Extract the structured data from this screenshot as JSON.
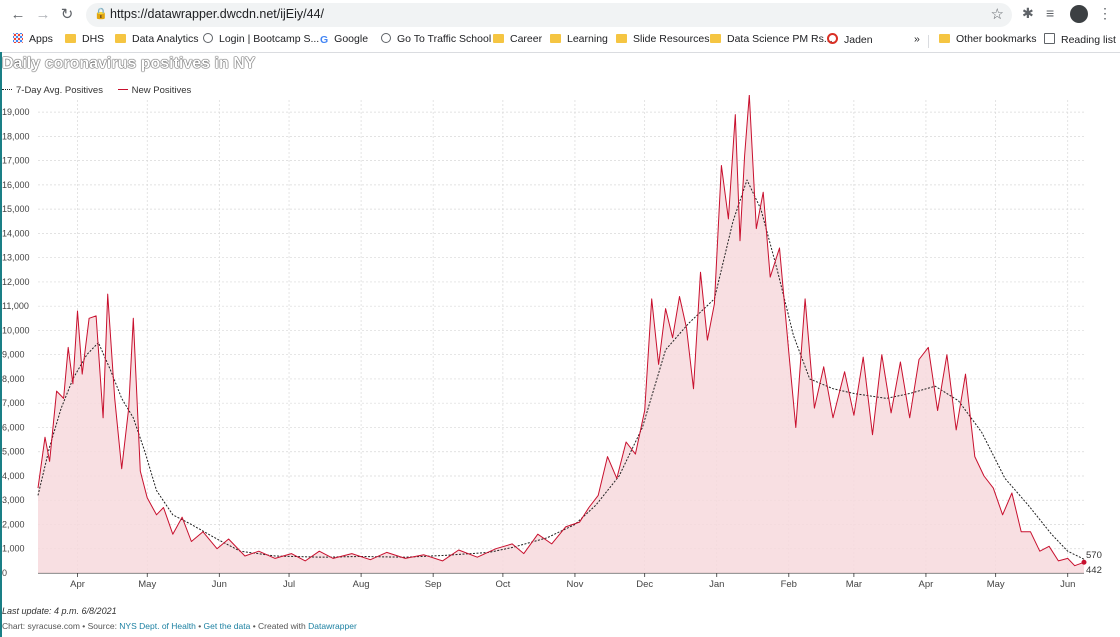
{
  "browser": {
    "url": "https://datawrapper.dwcdn.net/ijEiy/44/",
    "bookmarks": [
      "Apps",
      "DHS",
      "Data Analytics",
      "Login | Bootcamp S...",
      "Google",
      "Go To Traffic School",
      "Career",
      "Learning",
      "Slide Resources",
      "Data Science PM Rs...",
      "Jaden"
    ],
    "more_label": "»",
    "other_bookmarks": "Other bookmarks",
    "reading_list": "Reading list"
  },
  "footer": {
    "last_update": "Last update: 4 p.m. 6/8/2021",
    "prefix": "Chart: syracuse.com • Source: ",
    "source_link": "NYS Dept. of Health",
    "sep1": " • ",
    "data_link": "Get the data",
    "sep2": " • Created with ",
    "dw_link": "Datawrapper"
  },
  "colors": {
    "new_line": "#c8102e",
    "area_fill": "#f7d9dd",
    "avg_line": "#222222",
    "grid": "#d8d8d8"
  },
  "chart_data": {
    "type": "line",
    "title": "Daily coronavirus positives in NY",
    "x_axis": "date",
    "x_range": [
      "2020-03-15",
      "2021-06-08"
    ],
    "ylim": [
      0,
      19500
    ],
    "y_ticks": [
      0,
      1000,
      2000,
      3000,
      4000,
      5000,
      6000,
      7000,
      8000,
      9000,
      10000,
      11000,
      12000,
      13000,
      14000,
      15000,
      16000,
      17000,
      18000,
      19000
    ],
    "y_tick_labels": [
      "0",
      "1,000",
      "2,000",
      "3,000",
      "4,000",
      "5,000",
      "6,000",
      "7,000",
      "8,000",
      "9,000",
      "10,000",
      "11,000",
      "12,000",
      "13,000",
      "14,000",
      "15,000",
      "16,000",
      "17,000",
      "18,000",
      "19,000"
    ],
    "x_ticks": [
      "2020-04-01",
      "2020-05-01",
      "2020-06-01",
      "2020-07-01",
      "2020-08-01",
      "2020-09-01",
      "2020-10-01",
      "2020-11-01",
      "2020-12-01",
      "2021-01-01",
      "2021-02-01",
      "2021-03-01",
      "2021-04-01",
      "2021-05-01",
      "2021-06-01"
    ],
    "x_tick_labels": [
      "Apr",
      "May",
      "Jun",
      "Jul",
      "Aug",
      "Sep",
      "Oct",
      "Nov",
      "Dec",
      "Jan",
      "Feb",
      "Mar",
      "Apr",
      "May",
      "Jun"
    ],
    "grid": true,
    "legend_position": "top-left",
    "series": [
      {
        "name": "7-Day Avg. Positives",
        "style": "dotted",
        "end_label": "570",
        "points": [
          [
            "2020-03-15",
            3200
          ],
          [
            "2020-03-20",
            5200
          ],
          [
            "2020-03-25",
            6800
          ],
          [
            "2020-03-30",
            8000
          ],
          [
            "2020-04-05",
            9000
          ],
          [
            "2020-04-10",
            9500
          ],
          [
            "2020-04-15",
            8400
          ],
          [
            "2020-04-20",
            7200
          ],
          [
            "2020-04-25",
            6400
          ],
          [
            "2020-04-30",
            5000
          ],
          [
            "2020-05-05",
            3400
          ],
          [
            "2020-05-12",
            2400
          ],
          [
            "2020-05-20",
            2000
          ],
          [
            "2020-05-31",
            1400
          ],
          [
            "2020-06-10",
            900
          ],
          [
            "2020-06-25",
            700
          ],
          [
            "2020-07-15",
            650
          ],
          [
            "2020-08-01",
            680
          ],
          [
            "2020-08-20",
            650
          ],
          [
            "2020-09-05",
            720
          ],
          [
            "2020-09-25",
            850
          ],
          [
            "2020-10-05",
            1050
          ],
          [
            "2020-10-20",
            1450
          ],
          [
            "2020-11-01",
            2000
          ],
          [
            "2020-11-10",
            2800
          ],
          [
            "2020-11-20",
            4000
          ],
          [
            "2020-11-30",
            6000
          ],
          [
            "2020-12-10",
            9200
          ],
          [
            "2020-12-20",
            10300
          ],
          [
            "2020-12-31",
            11300
          ],
          [
            "2021-01-08",
            14500
          ],
          [
            "2021-01-14",
            16200
          ],
          [
            "2021-01-20",
            15000
          ],
          [
            "2021-01-27",
            12500
          ],
          [
            "2021-02-03",
            9800
          ],
          [
            "2021-02-10",
            8000
          ],
          [
            "2021-02-20",
            7600
          ],
          [
            "2021-03-01",
            7400
          ],
          [
            "2021-03-15",
            7200
          ],
          [
            "2021-03-25",
            7400
          ],
          [
            "2021-04-05",
            7700
          ],
          [
            "2021-04-15",
            7100
          ],
          [
            "2021-04-25",
            5800
          ],
          [
            "2021-05-05",
            3900
          ],
          [
            "2021-05-15",
            2800
          ],
          [
            "2021-05-25",
            1600
          ],
          [
            "2021-06-01",
            900
          ],
          [
            "2021-06-08",
            570
          ]
        ]
      },
      {
        "name": "New Positives",
        "style": "solid",
        "end_label": "442",
        "points": [
          [
            "2020-03-15",
            3500
          ],
          [
            "2020-03-18",
            5600
          ],
          [
            "2020-03-20",
            4600
          ],
          [
            "2020-03-23",
            7500
          ],
          [
            "2020-03-26",
            7200
          ],
          [
            "2020-03-28",
            9300
          ],
          [
            "2020-03-30",
            7800
          ],
          [
            "2020-04-01",
            10800
          ],
          [
            "2020-04-03",
            8200
          ],
          [
            "2020-04-06",
            10500
          ],
          [
            "2020-04-09",
            10600
          ],
          [
            "2020-04-12",
            6400
          ],
          [
            "2020-04-14",
            11500
          ],
          [
            "2020-04-17",
            7200
          ],
          [
            "2020-04-20",
            4300
          ],
          [
            "2020-04-23",
            6800
          ],
          [
            "2020-04-25",
            10500
          ],
          [
            "2020-04-28",
            4200
          ],
          [
            "2020-05-01",
            3100
          ],
          [
            "2020-05-05",
            2400
          ],
          [
            "2020-05-08",
            2700
          ],
          [
            "2020-05-12",
            1600
          ],
          [
            "2020-05-16",
            2300
          ],
          [
            "2020-05-20",
            1300
          ],
          [
            "2020-05-25",
            1700
          ],
          [
            "2020-05-31",
            1000
          ],
          [
            "2020-06-05",
            1400
          ],
          [
            "2020-06-12",
            700
          ],
          [
            "2020-06-18",
            900
          ],
          [
            "2020-06-25",
            600
          ],
          [
            "2020-07-02",
            800
          ],
          [
            "2020-07-08",
            500
          ],
          [
            "2020-07-14",
            900
          ],
          [
            "2020-07-20",
            600
          ],
          [
            "2020-07-28",
            800
          ],
          [
            "2020-08-05",
            550
          ],
          [
            "2020-08-12",
            850
          ],
          [
            "2020-08-20",
            600
          ],
          [
            "2020-08-28",
            750
          ],
          [
            "2020-09-05",
            500
          ],
          [
            "2020-09-12",
            950
          ],
          [
            "2020-09-20",
            650
          ],
          [
            "2020-09-28",
            1000
          ],
          [
            "2020-10-05",
            1200
          ],
          [
            "2020-10-10",
            800
          ],
          [
            "2020-10-16",
            1600
          ],
          [
            "2020-10-22",
            1200
          ],
          [
            "2020-10-28",
            1900
          ],
          [
            "2020-11-03",
            2100
          ],
          [
            "2020-11-07",
            2700
          ],
          [
            "2020-11-11",
            3200
          ],
          [
            "2020-11-15",
            4800
          ],
          [
            "2020-11-19",
            3900
          ],
          [
            "2020-11-23",
            5400
          ],
          [
            "2020-11-27",
            4900
          ],
          [
            "2020-12-01",
            6700
          ],
          [
            "2020-12-04",
            11300
          ],
          [
            "2020-12-07",
            8600
          ],
          [
            "2020-12-10",
            10900
          ],
          [
            "2020-12-13",
            9700
          ],
          [
            "2020-12-16",
            11400
          ],
          [
            "2020-12-19",
            10100
          ],
          [
            "2020-12-22",
            7600
          ],
          [
            "2020-12-25",
            12400
          ],
          [
            "2020-12-28",
            9600
          ],
          [
            "2020-12-31",
            11100
          ],
          [
            "2021-01-03",
            16800
          ],
          [
            "2021-01-06",
            14600
          ],
          [
            "2021-01-09",
            18900
          ],
          [
            "2021-01-11",
            13700
          ],
          [
            "2021-01-13",
            17200
          ],
          [
            "2021-01-15",
            20100
          ],
          [
            "2021-01-18",
            14200
          ],
          [
            "2021-01-21",
            15700
          ],
          [
            "2021-01-24",
            12200
          ],
          [
            "2021-01-28",
            13400
          ],
          [
            "2021-02-01",
            9100
          ],
          [
            "2021-02-04",
            6000
          ],
          [
            "2021-02-08",
            11300
          ],
          [
            "2021-02-12",
            6800
          ],
          [
            "2021-02-16",
            8500
          ],
          [
            "2021-02-20",
            6400
          ],
          [
            "2021-02-25",
            8300
          ],
          [
            "2021-03-01",
            6500
          ],
          [
            "2021-03-05",
            8900
          ],
          [
            "2021-03-09",
            5700
          ],
          [
            "2021-03-13",
            9000
          ],
          [
            "2021-03-17",
            6600
          ],
          [
            "2021-03-21",
            8700
          ],
          [
            "2021-03-25",
            6400
          ],
          [
            "2021-03-29",
            8800
          ],
          [
            "2021-04-02",
            9300
          ],
          [
            "2021-04-06",
            6700
          ],
          [
            "2021-04-10",
            9000
          ],
          [
            "2021-04-14",
            5900
          ],
          [
            "2021-04-18",
            8200
          ],
          [
            "2021-04-22",
            4800
          ],
          [
            "2021-04-26",
            4000
          ],
          [
            "2021-04-30",
            3500
          ],
          [
            "2021-05-04",
            2400
          ],
          [
            "2021-05-08",
            3300
          ],
          [
            "2021-05-12",
            1700
          ],
          [
            "2021-05-16",
            1700
          ],
          [
            "2021-05-20",
            900
          ],
          [
            "2021-05-24",
            1100
          ],
          [
            "2021-05-28",
            500
          ],
          [
            "2021-06-01",
            600
          ],
          [
            "2021-06-04",
            300
          ],
          [
            "2021-06-08",
            442
          ]
        ]
      }
    ]
  }
}
